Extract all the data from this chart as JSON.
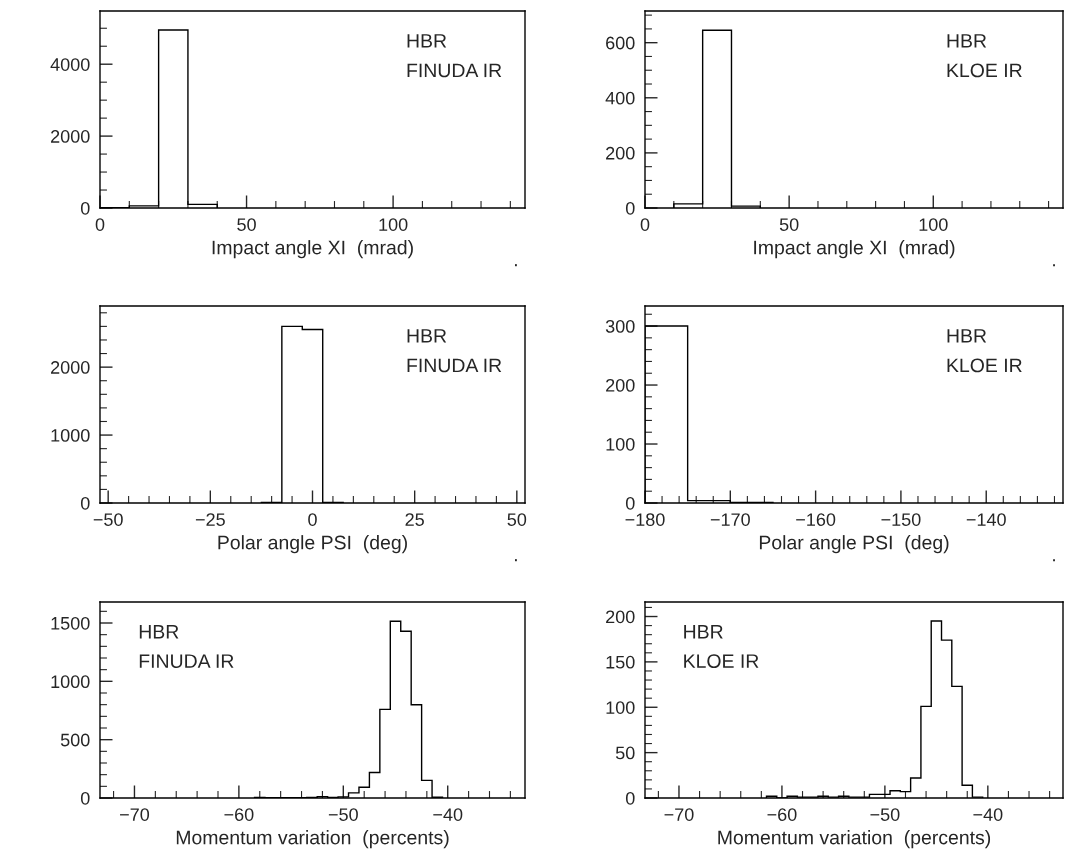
{
  "chart_data": [
    {
      "type": "histogram",
      "xlabel": "Impact angle XI  (mrad)",
      "bins": [
        0,
        10,
        20,
        30,
        40
      ],
      "values": [
        10,
        60,
        4950,
        100
      ],
      "color": "#000000",
      "xlim": [
        0,
        145
      ],
      "xticks": [
        0,
        50,
        100
      ],
      "ylim": [
        0,
        5480
      ],
      "yticks": [
        0,
        2000,
        4000
      ],
      "annotations": [
        "HBR",
        "FINUDA IR",
        "."
      ]
    },
    {
      "type": "histogram",
      "xlabel": "Impact angle XI  (mrad)",
      "bins": [
        10,
        20,
        30,
        40
      ],
      "values": [
        15,
        645,
        7
      ],
      "color": "#000000",
      "xlim": [
        0,
        145
      ],
      "xticks": [
        0,
        50,
        100
      ],
      "ylim": [
        0,
        715
      ],
      "yticks": [
        0,
        200,
        400,
        600
      ],
      "annotations": [
        "HBR",
        "KLOE IR",
        "."
      ]
    },
    {
      "type": "histogram",
      "xlabel": "Polar angle PSI  (deg)",
      "bins": [
        -12.5,
        -7.5,
        -2.5,
        2.5,
        7.5
      ],
      "values": [
        10,
        2600,
        2555,
        8
      ],
      "color": "#000000",
      "xlim": [
        -52,
        52
      ],
      "xticks": [
        {
          "value": -50,
          "label": "−50"
        },
        {
          "value": -25,
          "label": "−25"
        },
        0,
        25,
        50
      ],
      "ylim": [
        0,
        2900
      ],
      "yticks": [
        0,
        1000,
        2000
      ],
      "annotations": [
        "HBR",
        "FINUDA IR",
        "."
      ]
    },
    {
      "type": "histogram",
      "xlabel": "Polar angle PSI  (deg)",
      "bins": [
        -180,
        -175,
        -170,
        -165
      ],
      "values": [
        300,
        4,
        1
      ],
      "color": "#000000",
      "xlim": [
        -180,
        -131
      ],
      "xticks": [
        {
          "value": -180,
          "label": "−180"
        },
        {
          "value": -170,
          "label": "−170"
        },
        {
          "value": -160,
          "label": "−160"
        },
        {
          "value": -150,
          "label": "−150"
        },
        {
          "value": -140,
          "label": "−140"
        }
      ],
      "ylim": [
        0,
        334
      ],
      "yticks": [
        0,
        100,
        200,
        300
      ],
      "annotations": [
        "HBR",
        "KLOE IR",
        "."
      ]
    },
    {
      "type": "histogram",
      "xlabel": "Momentum variation  (percents)",
      "bins": [
        -58.5,
        -57.5,
        -56.5,
        -55.5,
        -54.5,
        -53.5,
        -52.5,
        -51.5,
        -50.5,
        -49.5,
        -48.5,
        -47.5,
        -46.5,
        -45.5,
        -44.5,
        -43.5,
        -42.5,
        -41.5,
        -40.5
      ],
      "values": [
        4,
        2,
        3,
        2,
        3,
        4,
        12,
        5,
        10,
        44,
        92,
        219,
        760,
        1515,
        1429,
        799,
        151,
        6
      ],
      "color": "#000000",
      "xlim": [
        -73.3,
        -32.6
      ],
      "xticks": [
        {
          "value": -70,
          "label": "−70"
        },
        {
          "value": -60,
          "label": "−60"
        },
        {
          "value": -50,
          "label": "−50"
        },
        {
          "value": -40,
          "label": "−40"
        }
      ],
      "ylim": [
        0,
        1680
      ],
      "yticks": [
        0,
        500,
        1000,
        1500
      ],
      "annotations": [
        "HBR",
        "FINUDA IR"
      ]
    },
    {
      "type": "histogram",
      "xlabel": "Momentum variation  (percents)",
      "bins": [
        -61.5,
        -60.5,
        -59.5,
        -58.5,
        -57.5,
        -56.5,
        -55.5,
        -54.5,
        -53.5,
        -52.5,
        -51.5,
        -50.5,
        -49.5,
        -48.5,
        -47.5,
        -46.5,
        -45.5,
        -44.5,
        -43.5,
        -42.5,
        -41.5,
        -40.5
      ],
      "values": [
        2,
        0,
        2,
        1,
        1,
        2,
        1,
        2,
        1,
        1,
        4,
        4,
        8,
        7,
        22,
        101,
        195,
        174,
        123,
        14,
        1
      ],
      "color": "#000000",
      "xlim": [
        -73.3,
        -32.7
      ],
      "xticks": [
        {
          "value": -70,
          "label": "−70"
        },
        {
          "value": -60,
          "label": "−60"
        },
        {
          "value": -50,
          "label": "−50"
        },
        {
          "value": -40,
          "label": "−40"
        }
      ],
      "ylim": [
        0,
        216
      ],
      "yticks": [
        0,
        50,
        100,
        150,
        200
      ],
      "annotations": [
        "HBR",
        "KLOE IR"
      ]
    }
  ]
}
